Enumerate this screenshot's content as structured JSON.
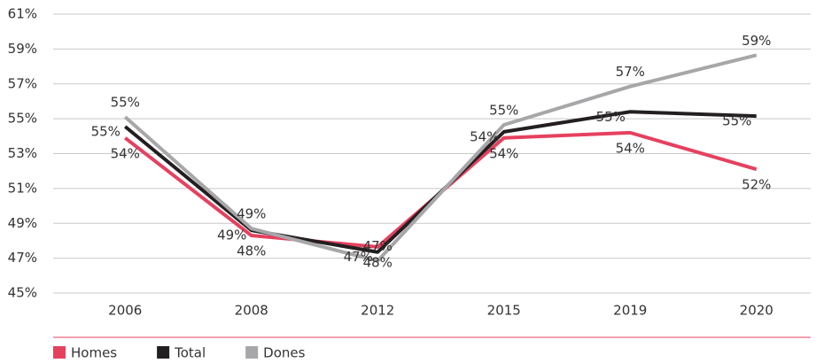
{
  "chart_data": {
    "type": "line",
    "categories": [
      "2006",
      "2008",
      "2012",
      "2015",
      "2019",
      "2020"
    ],
    "series": [
      {
        "name": "Homes",
        "color": "#e5415f",
        "values": [
          53.9,
          48.3,
          47.65,
          53.9,
          54.2,
          52.1
        ],
        "value_labels": [
          "54%",
          "48%",
          "48%",
          "54%",
          "54%",
          "52%"
        ]
      },
      {
        "name": "Total",
        "color": "#231f20",
        "values": [
          54.55,
          48.6,
          47.35,
          54.25,
          55.4,
          55.15
        ],
        "value_labels": [
          "55%",
          "49%",
          "47%",
          "54%",
          "55%",
          "55%"
        ]
      },
      {
        "name": "Dones",
        "color": "#a7a7a9",
        "values": [
          55.1,
          48.7,
          46.85,
          54.65,
          56.85,
          58.65
        ],
        "value_labels": [
          "55%",
          "49%",
          "47%",
          "55%",
          "57%",
          "59%"
        ]
      }
    ],
    "ylim": [
      45,
      61
    ],
    "yticks": [
      {
        "value": 45,
        "label": "45%"
      },
      {
        "value": 47,
        "label": "47%"
      },
      {
        "value": 49,
        "label": "49%"
      },
      {
        "value": 51,
        "label": "51%"
      },
      {
        "value": 53,
        "label": "53%"
      },
      {
        "value": 55,
        "label": "55%"
      },
      {
        "value": 57,
        "label": "57%"
      },
      {
        "value": 59,
        "label": "59%"
      },
      {
        "value": 61,
        "label": "61%"
      }
    ],
    "grid": true,
    "legend": "bottom-left"
  }
}
